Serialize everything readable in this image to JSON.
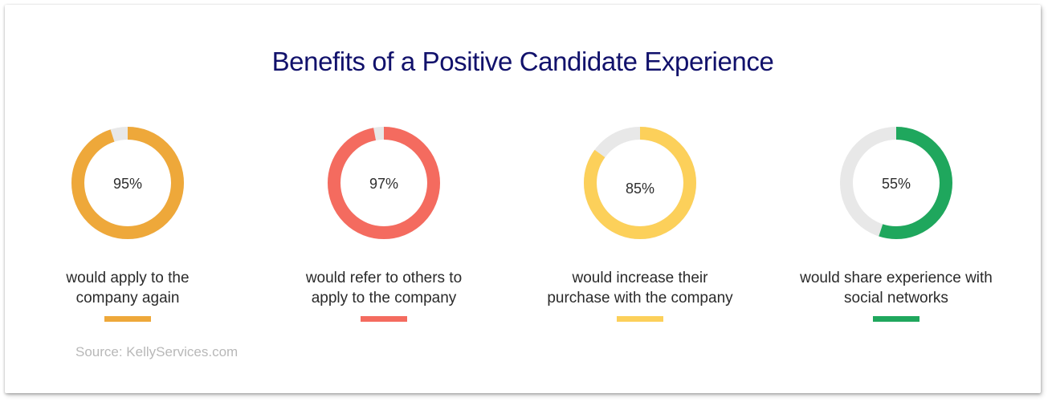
{
  "chart_data": {
    "type": "pie",
    "title": "Benefits of a Positive Candidate Experience",
    "source": "Source: KellyServices.com",
    "track_color": "#e8e8e8",
    "items": [
      {
        "value": 95,
        "value_label": "95%",
        "label_line1": "would apply to the",
        "label_line2": "company again",
        "color": "#eea83a"
      },
      {
        "value": 97,
        "value_label": "97%",
        "label_line1": "would refer to others to",
        "label_line2": "apply to the company",
        "color": "#f46b5f"
      },
      {
        "value": 85,
        "value_label": "85%",
        "label_line1": "would increase their",
        "label_line2": "purchase with the company",
        "color": "#fcd05a"
      },
      {
        "value": 55,
        "value_label": "55%",
        "label_line1": "would share experience with",
        "label_line2": "social networks",
        "color": "#1fa75d"
      }
    ]
  }
}
